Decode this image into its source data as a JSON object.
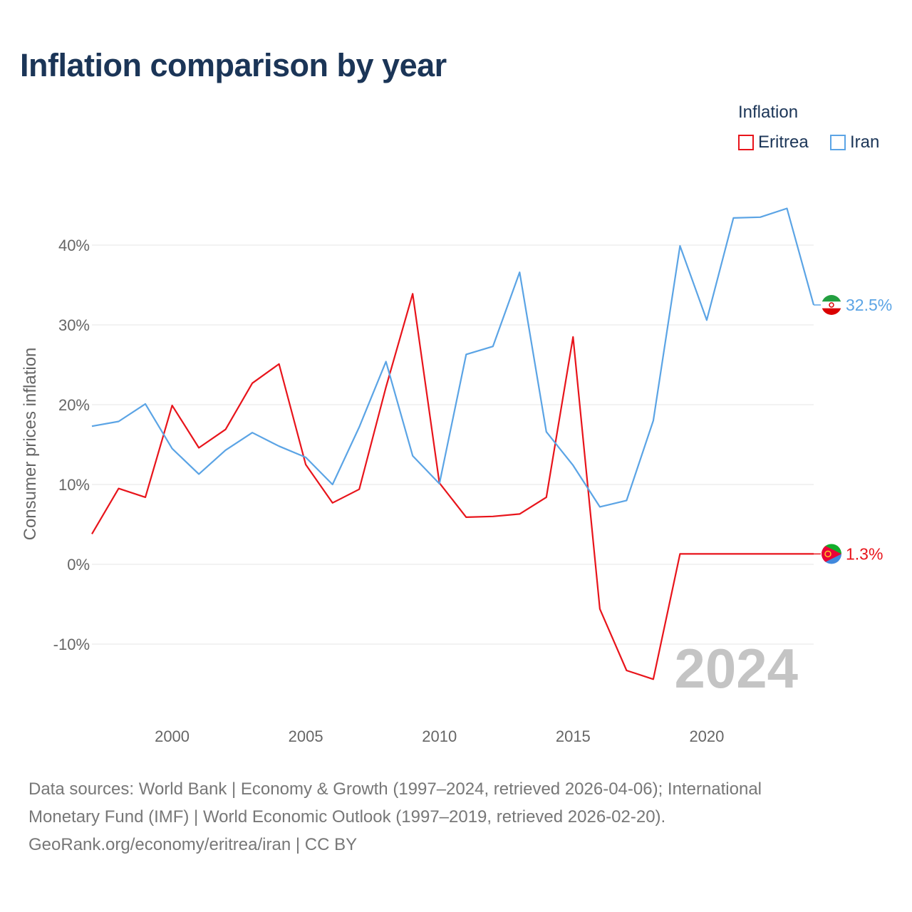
{
  "title": "Inflation comparison by year",
  "legend": {
    "title": "Inflation",
    "items": [
      {
        "label": "Eritrea",
        "color": "#e8141b"
      },
      {
        "label": "Iran",
        "color": "#5ba4e5"
      }
    ]
  },
  "sources": {
    "line1": "Data sources: World Bank | Economy & Growth (1997–2024, retrieved 2026-04-06); International",
    "line2": "Monetary Fund (IMF) | World Economic Outlook (1997–2019, retrieved 2026-02-20).",
    "line3": "GeoRank.org/economy/eritrea/iran | CC BY"
  },
  "chart_data": {
    "type": "line",
    "title": "Inflation comparison by year",
    "xlabel": "",
    "ylabel": "Consumer prices inflation",
    "xlim": [
      1997,
      2024
    ],
    "ylim": [
      -16,
      50
    ],
    "grid": true,
    "legend_position": "top-right",
    "x_ticks": [
      2000,
      2005,
      2010,
      2015,
      2020
    ],
    "y_ticks": [
      -10,
      0,
      10,
      20,
      30,
      40
    ],
    "y_tick_labels": [
      "-10%",
      "0%",
      "10%",
      "20%",
      "30%",
      "40%"
    ],
    "year_label": "2024",
    "series": [
      {
        "name": "Eritrea",
        "color": "#e8141b",
        "end_label": "1.3%",
        "x": [
          1997,
          1998,
          1999,
          2000,
          2001,
          2002,
          2003,
          2004,
          2005,
          2006,
          2007,
          2008,
          2009,
          2010,
          2011,
          2012,
          2013,
          2014,
          2015,
          2016,
          2017,
          2018,
          2019,
          2020,
          2021,
          2022,
          2023,
          2024
        ],
        "values": [
          3.8,
          9.5,
          8.4,
          19.9,
          14.6,
          16.9,
          22.7,
          25.1,
          12.5,
          7.7,
          9.4,
          22.2,
          33.9,
          10.2,
          5.9,
          6.0,
          6.3,
          8.4,
          28.5,
          -5.6,
          -13.3,
          -14.4,
          1.3,
          1.3,
          1.3,
          1.3,
          1.3,
          1.3
        ]
      },
      {
        "name": "Iran",
        "color": "#5ba4e5",
        "end_label": "32.5%",
        "x": [
          1997,
          1998,
          1999,
          2000,
          2001,
          2002,
          2003,
          2004,
          2005,
          2006,
          2007,
          2008,
          2009,
          2010,
          2011,
          2012,
          2013,
          2014,
          2015,
          2016,
          2017,
          2018,
          2019,
          2020,
          2021,
          2022,
          2023,
          2024
        ],
        "values": [
          17.3,
          17.9,
          20.1,
          14.5,
          11.3,
          14.3,
          16.5,
          14.8,
          13.4,
          10.0,
          17.2,
          25.4,
          13.6,
          10.1,
          26.3,
          27.3,
          36.6,
          16.6,
          12.4,
          7.2,
          8.0,
          18.0,
          39.9,
          30.6,
          43.4,
          43.5,
          44.6,
          32.5
        ]
      }
    ]
  }
}
